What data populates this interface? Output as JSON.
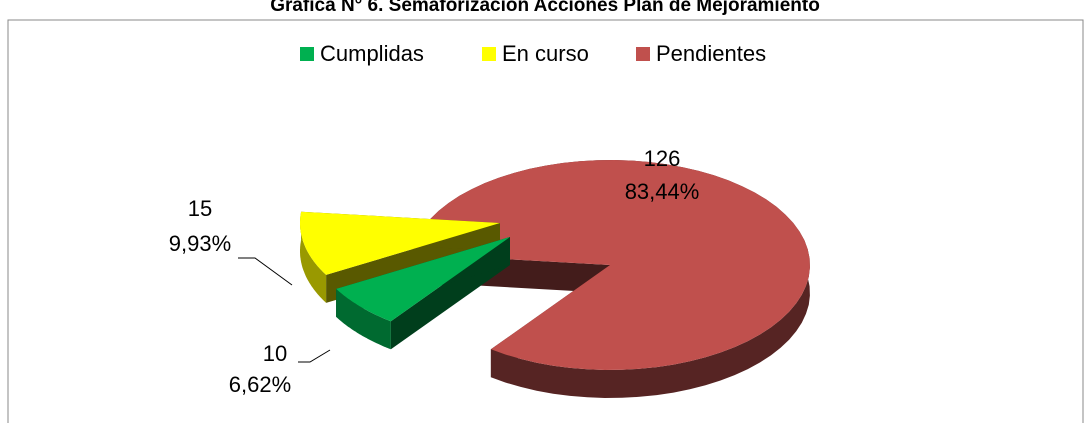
{
  "chart_data": {
    "type": "pie3d",
    "title": "Gráfica N° 6. Semaforización Acciones Plan de Mejoramiento",
    "categories": [
      "Cumplidas",
      "En curso",
      "Pendientes"
    ],
    "values": [
      10,
      15,
      126
    ],
    "percentages": [
      6.62,
      9.93,
      83.44
    ],
    "percentage_labels": [
      "6,62%",
      "9,93%",
      "83,44%"
    ],
    "colors": [
      "#00b050",
      "#ffff00",
      "#c0504d"
    ],
    "legend": "top"
  }
}
